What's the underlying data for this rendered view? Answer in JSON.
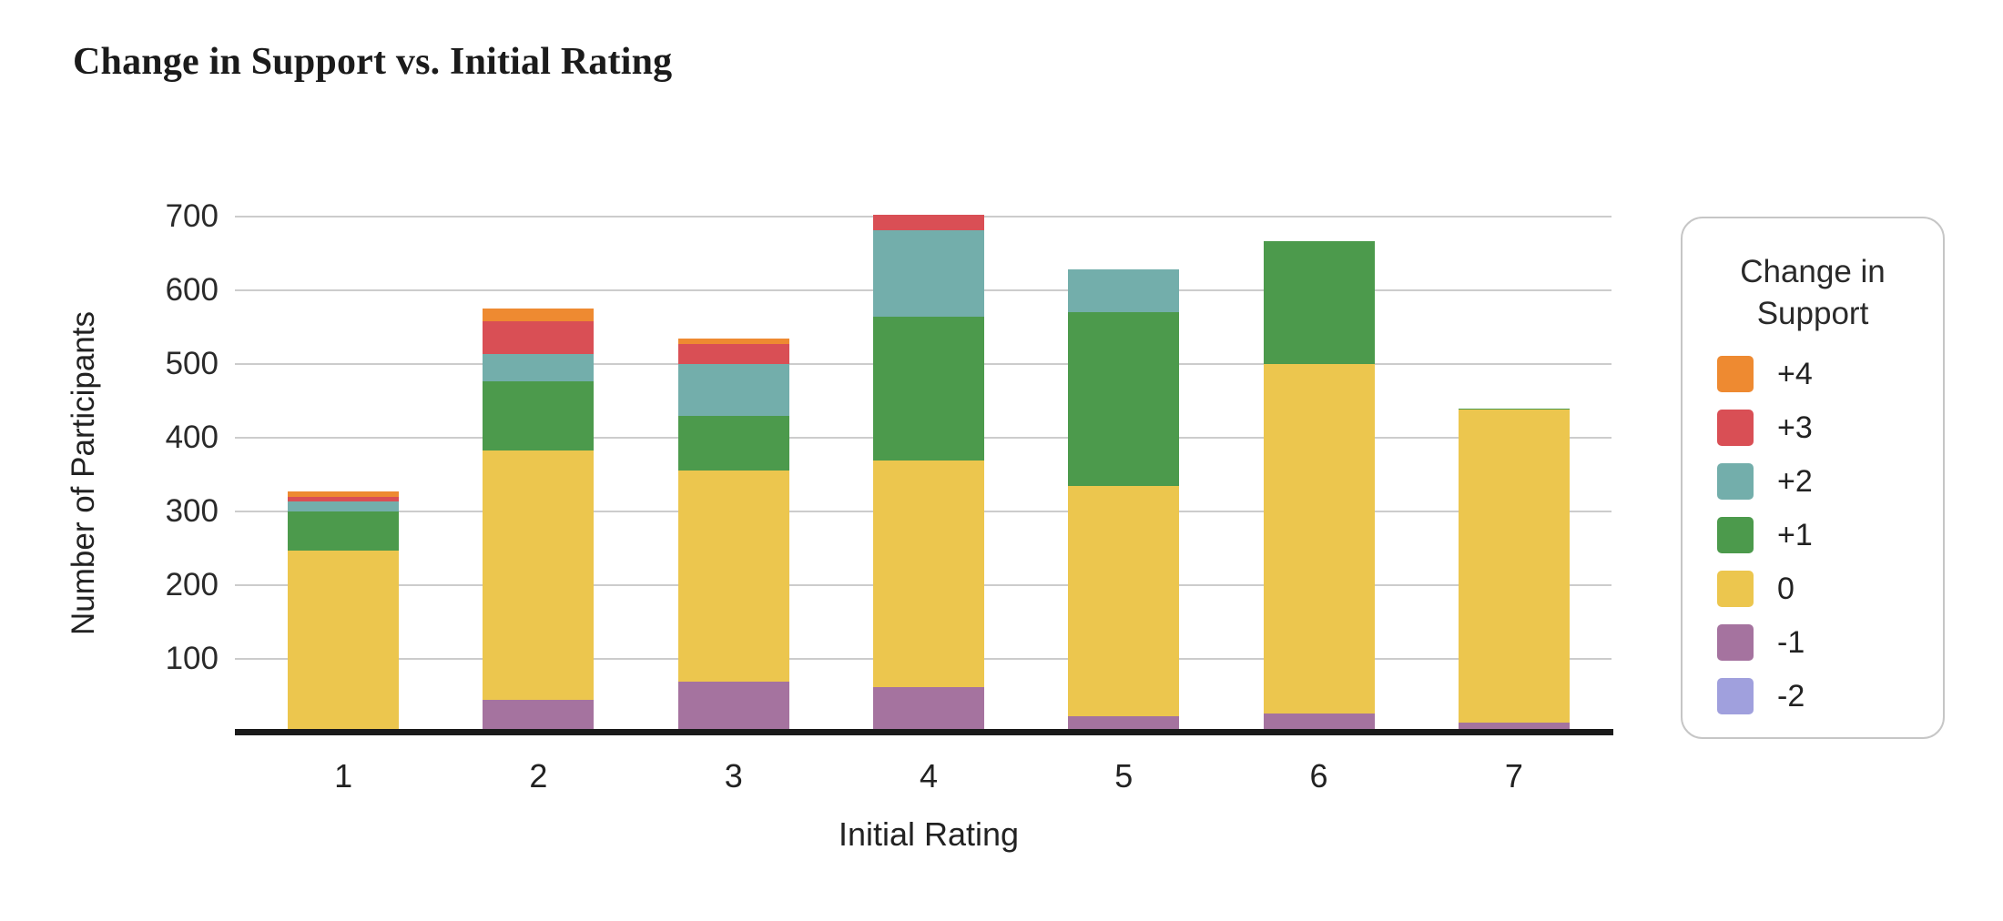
{
  "title": "Change in Support vs. Initial Rating",
  "legend": {
    "title_line1": "Change in",
    "title_line2": "Support"
  },
  "chart_data": {
    "type": "bar",
    "stacked": true,
    "title": "Change in Support vs. Initial Rating",
    "xlabel": "Initial Rating",
    "ylabel": "Number of Participants",
    "categories": [
      "1",
      "2",
      "3",
      "4",
      "5",
      "6",
      "7"
    ],
    "ylim": [
      0,
      700
    ],
    "yticks": [
      100,
      200,
      300,
      400,
      500,
      600,
      700
    ],
    "grid": true,
    "legend_title": "Change in Support",
    "legend_position": "right",
    "stack_order_bottom_to_top": [
      "-2",
      "-1",
      "0",
      "+1",
      "+2",
      "+3",
      "+4"
    ],
    "series": [
      {
        "name": "+4",
        "color": "#EE8A31",
        "values": [
          7,
          17,
          7,
          0,
          0,
          0,
          0
        ]
      },
      {
        "name": "+3",
        "color": "#D94F55",
        "values": [
          7,
          45,
          27,
          21,
          0,
          0,
          0
        ]
      },
      {
        "name": "+2",
        "color": "#73AEAB",
        "values": [
          13,
          37,
          70,
          117,
          58,
          0,
          0
        ]
      },
      {
        "name": "+1",
        "color": "#4C9A4C",
        "values": [
          53,
          93,
          74,
          195,
          236,
          167,
          2
        ]
      },
      {
        "name": "0",
        "color": "#ECC64E",
        "values": [
          247,
          338,
          287,
          307,
          313,
          474,
          425
        ]
      },
      {
        "name": "-1",
        "color": "#A5739F",
        "values": [
          0,
          45,
          69,
          62,
          22,
          26,
          13
        ]
      },
      {
        "name": "-2",
        "color": "#A0A0DD",
        "values": [
          0,
          0,
          0,
          0,
          0,
          0,
          0
        ]
      }
    ],
    "totals": [
      327,
      575,
      534,
      702,
      629,
      667,
      440
    ]
  }
}
